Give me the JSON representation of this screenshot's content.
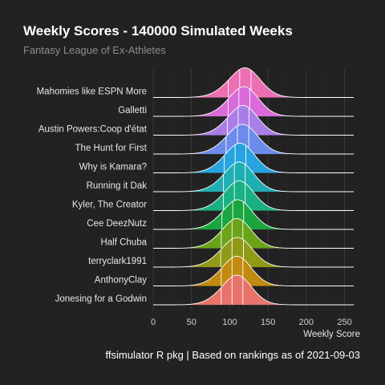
{
  "chart_data": {
    "type": "ridgeline",
    "title": "Weekly Scores - 140000 Simulated Weeks",
    "subtitle": "Fantasy League of Ex-Athletes",
    "caption": "ffsimulator R pkg | Based on rankings as of 2021-09-03",
    "xlabel": "Weekly Score",
    "ylabel": "",
    "xlim": [
      0,
      262
    ],
    "xticks": [
      0,
      50,
      100,
      150,
      200,
      250
    ],
    "grid": true,
    "legend": "none",
    "quantile_lines": [
      0.25,
      0.5,
      0.75
    ],
    "series": [
      {
        "name": "Mahomies like ESPN More",
        "mean": 113,
        "sd": 22,
        "color": "#eb6fb2"
      },
      {
        "name": "Galletti",
        "mean": 112,
        "sd": 21,
        "color": "#d86ad9"
      },
      {
        "name": "Austin Powers:Coop d'état",
        "mean": 111,
        "sd": 21,
        "color": "#a97ee6"
      },
      {
        "name": "The Hunt for First",
        "mean": 110,
        "sd": 22,
        "color": "#6c8bea"
      },
      {
        "name": "Why is Kamara?",
        "mean": 107,
        "sd": 21,
        "color": "#27a3df"
      },
      {
        "name": "Running it Dak",
        "mean": 106,
        "sd": 21,
        "color": "#1eaeb3"
      },
      {
        "name": "Kyler, The Creator",
        "mean": 106,
        "sd": 21,
        "color": "#1ab083"
      },
      {
        "name": "Cee DeezNutz",
        "mean": 104,
        "sd": 21,
        "color": "#1aa53f"
      },
      {
        "name": "Half Chuba",
        "mean": 103,
        "sd": 21,
        "color": "#6ba319"
      },
      {
        "name": "terryclark1991",
        "mean": 103,
        "sd": 22,
        "color": "#909a17"
      },
      {
        "name": "AnthonyClay",
        "mean": 103,
        "sd": 21,
        "color": "#c28a0f"
      },
      {
        "name": "Jonesing for a Godwin",
        "mean": 103,
        "sd": 21,
        "color": "#e7736a"
      }
    ]
  }
}
